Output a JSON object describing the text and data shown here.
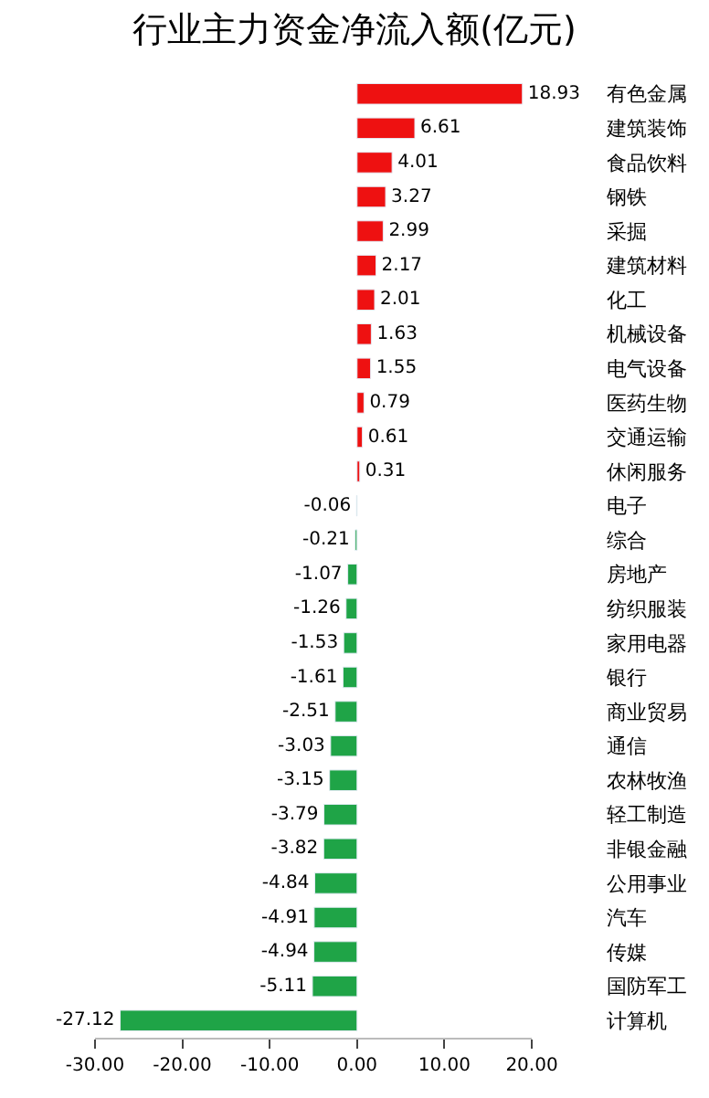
{
  "chart_data": {
    "type": "bar",
    "orientation": "horizontal",
    "title": "行业主力资金净流入额(亿元)",
    "categories": [
      "有色金属",
      "建筑装饰",
      "食品饮料",
      "钢铁",
      "采掘",
      "建筑材料",
      "化工",
      "机械设备",
      "电气设备",
      "医药生物",
      "交通运输",
      "休闲服务",
      "电子",
      "综合",
      "房地产",
      "纺织服装",
      "家用电器",
      "银行",
      "商业贸易",
      "通信",
      "农林牧渔",
      "轻工制造",
      "非银金融",
      "公用事业",
      "汽车",
      "传媒",
      "国防军工",
      "计算机"
    ],
    "values": [
      18.93,
      6.61,
      4.01,
      3.27,
      2.99,
      2.17,
      2.01,
      1.63,
      1.55,
      0.79,
      0.61,
      0.31,
      -0.06,
      -0.21,
      -1.07,
      -1.26,
      -1.53,
      -1.61,
      -2.51,
      -3.03,
      -3.15,
      -3.79,
      -3.82,
      -4.84,
      -4.91,
      -4.94,
      -5.11,
      -27.12
    ],
    "colors": [
      "#ee1111",
      "#ee1111",
      "#ee1111",
      "#ee1111",
      "#ee1111",
      "#ee1111",
      "#ee1111",
      "#ee1111",
      "#ee1111",
      "#ee1111",
      "#ee1111",
      "#ee1111",
      "#1fa447",
      "#1fa447",
      "#1fa447",
      "#1fa447",
      "#1fa447",
      "#1fa447",
      "#1fa447",
      "#1fa447",
      "#1fa447",
      "#1fa447",
      "#1fa447",
      "#1fa447",
      "#1fa447",
      "#1fa447",
      "#1fa447",
      "#1fa447"
    ],
    "xlim": [
      -30,
      20
    ],
    "xticks": [
      {
        "value": -30,
        "label": "-30.00"
      },
      {
        "value": -20,
        "label": "-20.00"
      },
      {
        "value": -10,
        "label": "-10.00"
      },
      {
        "value": 0,
        "label": "0.00"
      },
      {
        "value": 10,
        "label": "10.00"
      },
      {
        "value": 20,
        "label": "20.00"
      }
    ],
    "data_labels": true
  }
}
